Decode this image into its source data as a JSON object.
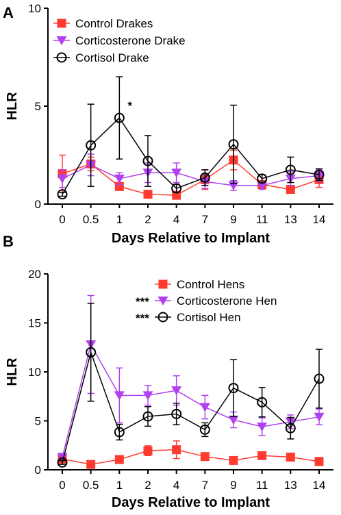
{
  "chart_data": [
    {
      "panel": "A",
      "type": "line",
      "xlabel": "Days Relative to Implant",
      "ylabel": "HLR",
      "categories": [
        "0",
        "0.5",
        "1",
        "2",
        "4",
        "7",
        "9",
        "11",
        "13",
        "14"
      ],
      "ylim": [
        0,
        10
      ],
      "yticks": [
        0,
        5,
        10
      ],
      "legend_position": "top-left",
      "grid": false,
      "series": [
        {
          "name": "Control Drakes",
          "marker": "square",
          "color": "#ff3b30",
          "values": [
            1.55,
            2.05,
            0.9,
            0.5,
            0.45,
            1.25,
            2.25,
            1.0,
            0.75,
            1.25
          ],
          "errors": [
            0.95,
            0.35,
            0.2,
            0.1,
            0.1,
            0.5,
            0.5,
            0.2,
            0.15,
            0.4
          ]
        },
        {
          "name": "Corticosterone Drake",
          "marker": "triangle-down",
          "color": "#b040f0",
          "values": [
            1.3,
            2.0,
            1.3,
            1.6,
            1.6,
            1.15,
            0.95,
            0.95,
            1.3,
            1.45
          ],
          "errors": [
            0.45,
            0.55,
            0.3,
            0.5,
            0.5,
            0.35,
            0.25,
            0.2,
            0.35,
            0.3
          ]
        },
        {
          "name": "Cortisol Drake",
          "marker": "circle-open",
          "color": "#000000",
          "values": [
            0.5,
            3.0,
            4.4,
            2.2,
            0.8,
            1.35,
            3.05,
            1.3,
            1.75,
            1.5
          ],
          "errors": [
            0.1,
            2.1,
            2.1,
            1.3,
            0.2,
            0.4,
            2.0,
            0.2,
            0.65,
            0.3
          ]
        }
      ],
      "annotations": [
        {
          "text": "*",
          "x": "1",
          "y": 4.9
        }
      ]
    },
    {
      "panel": "B",
      "type": "line",
      "xlabel": "Days Relative to Implant",
      "ylabel": "HLR",
      "categories": [
        "0",
        "0.5",
        "1",
        "2",
        "4",
        "7",
        "9",
        "11",
        "13",
        "14"
      ],
      "ylim": [
        0,
        20
      ],
      "yticks": [
        0,
        5,
        10,
        15,
        20
      ],
      "legend_position": "top-right",
      "grid": false,
      "series": [
        {
          "name": "Control Hens",
          "marker": "square",
          "color": "#ff3b30",
          "values": [
            1.1,
            0.55,
            1.05,
            1.95,
            2.05,
            1.35,
            0.95,
            1.45,
            1.3,
            0.85
          ],
          "errors": [
            0.4,
            0.2,
            0.2,
            0.5,
            0.9,
            0.3,
            0.2,
            0.25,
            0.25,
            0.2
          ]
        },
        {
          "name": "Corticosterone Hen",
          "marker": "triangle-down",
          "color": "#b040f0",
          "values": [
            1.3,
            12.8,
            7.6,
            7.6,
            8.1,
            6.4,
            5.1,
            4.4,
            4.9,
            5.4
          ],
          "errors": [
            0.3,
            5.0,
            2.8,
            1.0,
            1.5,
            1.2,
            0.8,
            0.9,
            0.7,
            0.8
          ]
        },
        {
          "name": "Cortisol Hen",
          "marker": "circle-open",
          "color": "#000000",
          "values": [
            0.75,
            12.0,
            3.85,
            5.45,
            5.7,
            4.1,
            8.35,
            6.9,
            4.25,
            9.3
          ],
          "errors": [
            0.2,
            5.0,
            0.8,
            1.0,
            1.1,
            0.7,
            2.9,
            1.5,
            1.1,
            3.0
          ]
        }
      ],
      "annotations": [
        {
          "text": "***",
          "legend_row": 1
        },
        {
          "text": "***",
          "legend_row": 2
        }
      ]
    }
  ]
}
